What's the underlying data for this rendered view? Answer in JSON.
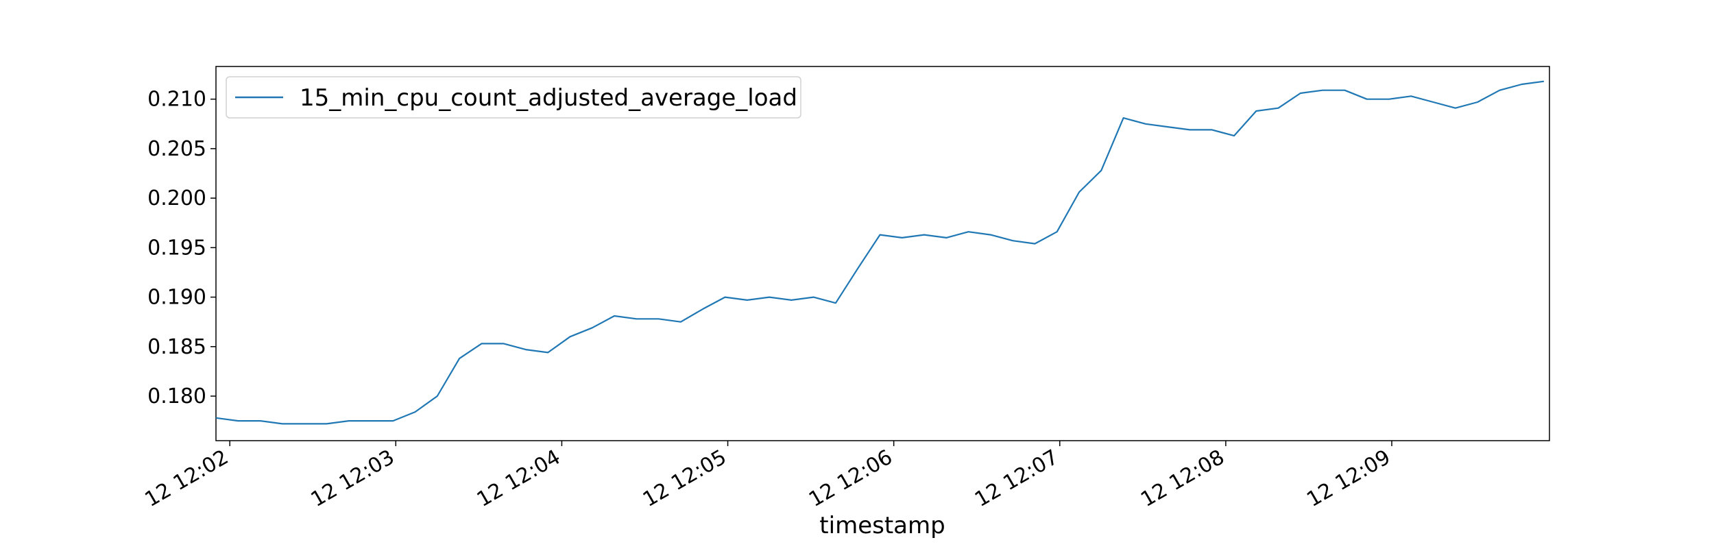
{
  "chart_data": {
    "type": "line",
    "title": "",
    "xlabel": "timestamp",
    "ylabel": "",
    "x_tick_labels": [
      "12 12:02",
      "12 12:03",
      "12 12:04",
      "12 12:05",
      "12 12:06",
      "12 12:07",
      "12 12:08",
      "12 12:09"
    ],
    "y_tick_labels": [
      "0.180",
      "0.185",
      "0.190",
      "0.195",
      "0.200",
      "0.205",
      "0.210"
    ],
    "y_ticks": [
      0.18,
      0.185,
      0.19,
      0.195,
      0.2,
      0.205,
      0.21
    ],
    "xlim": [
      "12:01:55",
      "12:09:57"
    ],
    "ylim": [
      0.1755,
      0.2133
    ],
    "grid": false,
    "legend_position": "top-left",
    "series": [
      {
        "name": "15_min_cpu_count_adjusted_average_load",
        "color": "#1f77b4",
        "x": [
          "12:01:55",
          "12:02:03",
          "12:02:11",
          "12:02:19",
          "12:02:27",
          "12:02:35",
          "12:02:43",
          "12:02:51",
          "12:02:59",
          "12:03:07",
          "12:03:15",
          "12:03:23",
          "12:03:31",
          "12:03:39",
          "12:03:47",
          "12:03:55",
          "12:04:03",
          "12:04:11",
          "12:04:19",
          "12:04:27",
          "12:04:35",
          "12:04:43",
          "12:04:51",
          "12:04:59",
          "12:05:07",
          "12:05:15",
          "12:05:23",
          "12:05:31",
          "12:05:39",
          "12:05:47",
          "12:05:55",
          "12:06:03",
          "12:06:11",
          "12:06:19",
          "12:06:27",
          "12:06:35",
          "12:06:43",
          "12:06:51",
          "12:06:59",
          "12:07:07",
          "12:07:15",
          "12:07:23",
          "12:07:31",
          "12:07:39",
          "12:07:47",
          "12:07:55",
          "12:08:03",
          "12:08:11",
          "12:08:19",
          "12:08:27",
          "12:08:35",
          "12:08:43",
          "12:08:51",
          "12:08:59",
          "12:09:07",
          "12:09:15",
          "12:09:23",
          "12:09:31",
          "12:09:39",
          "12:09:47",
          "12:09:55"
        ],
        "y": [
          0.1778,
          0.1775,
          0.1775,
          0.1772,
          0.1772,
          0.1772,
          0.1775,
          0.1775,
          0.1775,
          0.1784,
          0.18,
          0.1838,
          0.1853,
          0.1853,
          0.1847,
          0.1844,
          0.186,
          0.1869,
          0.1881,
          0.1878,
          0.1878,
          0.1875,
          0.1888,
          0.19,
          0.1897,
          0.19,
          0.1897,
          0.19,
          0.1894,
          0.1929,
          0.1963,
          0.196,
          0.1963,
          0.196,
          0.1966,
          0.1963,
          0.1957,
          0.1954,
          0.1966,
          0.2006,
          0.2028,
          0.2081,
          0.2075,
          0.2072,
          0.2069,
          0.2069,
          0.2063,
          0.2088,
          0.2091,
          0.2106,
          0.2109,
          0.2109,
          0.21,
          0.21,
          0.2103,
          0.2097,
          0.2091,
          0.2097,
          0.2109,
          0.2115,
          0.2118
        ]
      }
    ]
  }
}
